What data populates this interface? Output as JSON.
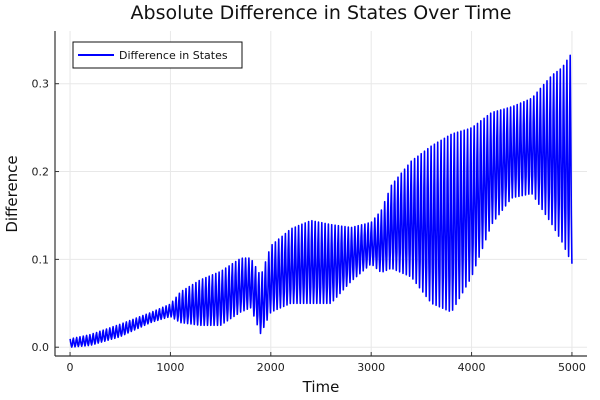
{
  "chart_data": {
    "type": "line",
    "title": "Absolute Difference in States Over Time",
    "xlabel": "Time",
    "ylabel": "Difference",
    "xlim": [
      -150,
      5150
    ],
    "ylim": [
      -0.01,
      0.36
    ],
    "xticks": [
      0,
      1000,
      2000,
      3000,
      4000,
      5000
    ],
    "xtick_labels": [
      "0",
      "1000",
      "2000",
      "3000",
      "4000",
      "5000"
    ],
    "yticks": [
      0.0,
      0.1,
      0.2,
      0.3
    ],
    "ytick_labels": [
      "0.0",
      "0.1",
      "0.2",
      "0.3"
    ],
    "grid": true,
    "legend": {
      "placement": "top-left",
      "entries": [
        "Difference in States"
      ]
    },
    "series": [
      {
        "name": "Difference in States",
        "color": "#0000ff",
        "oscillation_period": 33,
        "envelope_time": [
          0,
          200,
          500,
          800,
          1000,
          1100,
          1300,
          1500,
          1700,
          1800,
          1900,
          2000,
          2200,
          2400,
          2600,
          2800,
          3000,
          3100,
          3200,
          3400,
          3600,
          3800,
          4000,
          4200,
          4400,
          4600,
          4800,
          4900,
          5000
        ],
        "envelope_lower": [
          0.0,
          0.002,
          0.012,
          0.028,
          0.035,
          0.028,
          0.025,
          0.025,
          0.04,
          0.045,
          0.015,
          0.04,
          0.05,
          0.05,
          0.05,
          0.075,
          0.095,
          0.085,
          0.09,
          0.08,
          0.05,
          0.04,
          0.08,
          0.14,
          0.17,
          0.175,
          0.14,
          0.12,
          0.095
        ],
        "envelope_upper": [
          0.01,
          0.015,
          0.027,
          0.04,
          0.05,
          0.065,
          0.08,
          0.09,
          0.105,
          0.105,
          0.085,
          0.12,
          0.14,
          0.15,
          0.145,
          0.14,
          0.145,
          0.16,
          0.19,
          0.22,
          0.24,
          0.255,
          0.26,
          0.275,
          0.28,
          0.29,
          0.32,
          0.33,
          0.35
        ]
      }
    ]
  }
}
